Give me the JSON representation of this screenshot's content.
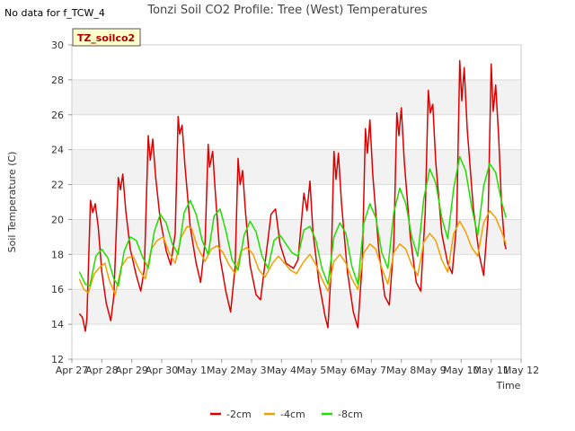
{
  "corner_note": "No data for f_TCW_4",
  "chart_data": {
    "type": "line",
    "title": "Tonzi Soil CO2 Profile: Tree (West) Temperatures",
    "xlabel": "Time",
    "ylabel": "Soil Temperature (C)",
    "box_label": "TZ_soilco2",
    "xlim": [
      0,
      15
    ],
    "ylim": [
      12,
      30
    ],
    "yticks": [
      12,
      14,
      16,
      18,
      20,
      22,
      24,
      26,
      28,
      30
    ],
    "xtick_labels": [
      "Apr 27",
      "Apr 28",
      "Apr 29",
      "Apr 30",
      "May 1",
      "May 2",
      "May 3",
      "May 4",
      "May 5",
      "May 6",
      "May 7",
      "May 8",
      "May 9",
      "May 10",
      "May 11",
      "May 12"
    ],
    "grid_bands": true,
    "legend_position": "bottom-center",
    "series": [
      {
        "name": "-2cm",
        "color": "#dd0000",
        "points": [
          [
            0.25,
            14.6
          ],
          [
            0.35,
            14.4
          ],
          [
            0.45,
            13.6
          ],
          [
            0.5,
            14.3
          ],
          [
            0.62,
            21.1
          ],
          [
            0.7,
            20.4
          ],
          [
            0.78,
            20.9
          ],
          [
            0.88,
            19.6
          ],
          [
            1.0,
            17.0
          ],
          [
            1.15,
            15.2
          ],
          [
            1.3,
            14.2
          ],
          [
            1.4,
            15.6
          ],
          [
            1.55,
            22.4
          ],
          [
            1.62,
            21.7
          ],
          [
            1.7,
            22.6
          ],
          [
            1.8,
            20.5
          ],
          [
            1.95,
            18.3
          ],
          [
            2.15,
            16.8
          ],
          [
            2.3,
            15.9
          ],
          [
            2.42,
            17.2
          ],
          [
            2.55,
            24.8
          ],
          [
            2.62,
            23.4
          ],
          [
            2.7,
            24.6
          ],
          [
            2.8,
            22.4
          ],
          [
            2.95,
            20.0
          ],
          [
            3.15,
            18.2
          ],
          [
            3.3,
            17.4
          ],
          [
            3.45,
            19.2
          ],
          [
            3.55,
            25.9
          ],
          [
            3.6,
            24.9
          ],
          [
            3.68,
            25.4
          ],
          [
            3.78,
            23.0
          ],
          [
            3.95,
            19.6
          ],
          [
            4.15,
            17.5
          ],
          [
            4.3,
            16.4
          ],
          [
            4.45,
            18.7
          ],
          [
            4.55,
            24.3
          ],
          [
            4.6,
            23.0
          ],
          [
            4.7,
            23.9
          ],
          [
            4.8,
            21.3
          ],
          [
            4.95,
            17.8
          ],
          [
            5.15,
            15.8
          ],
          [
            5.3,
            14.7
          ],
          [
            5.45,
            17.3
          ],
          [
            5.55,
            23.5
          ],
          [
            5.62,
            22.0
          ],
          [
            5.7,
            22.8
          ],
          [
            5.8,
            20.4
          ],
          [
            5.95,
            17.4
          ],
          [
            6.15,
            15.7
          ],
          [
            6.3,
            15.4
          ],
          [
            6.5,
            18.2
          ],
          [
            6.65,
            20.3
          ],
          [
            6.8,
            20.6
          ],
          [
            6.95,
            18.6
          ],
          [
            7.15,
            17.5
          ],
          [
            7.4,
            17.2
          ],
          [
            7.55,
            17.7
          ],
          [
            7.75,
            21.5
          ],
          [
            7.85,
            20.5
          ],
          [
            7.95,
            22.2
          ],
          [
            8.05,
            19.3
          ],
          [
            8.25,
            16.4
          ],
          [
            8.45,
            14.5
          ],
          [
            8.55,
            13.8
          ],
          [
            8.65,
            16.8
          ],
          [
            8.75,
            23.9
          ],
          [
            8.82,
            22.3
          ],
          [
            8.9,
            23.8
          ],
          [
            9.0,
            21.0
          ],
          [
            9.2,
            17.0
          ],
          [
            9.4,
            14.7
          ],
          [
            9.55,
            13.8
          ],
          [
            9.7,
            17.6
          ],
          [
            9.8,
            25.2
          ],
          [
            9.87,
            23.8
          ],
          [
            9.95,
            25.7
          ],
          [
            10.05,
            22.5
          ],
          [
            10.25,
            18.2
          ],
          [
            10.45,
            15.6
          ],
          [
            10.6,
            15.1
          ],
          [
            10.75,
            18.6
          ],
          [
            10.85,
            26.1
          ],
          [
            10.92,
            24.8
          ],
          [
            11.0,
            26.4
          ],
          [
            11.1,
            23.3
          ],
          [
            11.3,
            19.0
          ],
          [
            11.5,
            16.4
          ],
          [
            11.65,
            15.9
          ],
          [
            11.8,
            20.4
          ],
          [
            11.9,
            27.4
          ],
          [
            11.97,
            26.1
          ],
          [
            12.05,
            26.6
          ],
          [
            12.15,
            23.3
          ],
          [
            12.35,
            19.2
          ],
          [
            12.55,
            17.5
          ],
          [
            12.7,
            16.9
          ],
          [
            12.85,
            19.8
          ],
          [
            12.95,
            29.1
          ],
          [
            13.02,
            26.8
          ],
          [
            13.1,
            28.7
          ],
          [
            13.2,
            25.2
          ],
          [
            13.4,
            20.7
          ],
          [
            13.6,
            18.0
          ],
          [
            13.75,
            16.8
          ],
          [
            13.9,
            20.2
          ],
          [
            14.0,
            28.9
          ],
          [
            14.07,
            26.2
          ],
          [
            14.15,
            27.7
          ],
          [
            14.25,
            24.8
          ],
          [
            14.35,
            20.8
          ],
          [
            14.45,
            18.6
          ],
          [
            14.5,
            18.3
          ]
        ]
      },
      {
        "name": "-4cm",
        "color": "#f0a000",
        "points": [
          [
            0.25,
            16.6
          ],
          [
            0.4,
            16.0
          ],
          [
            0.55,
            15.8
          ],
          [
            0.75,
            16.9
          ],
          [
            0.95,
            17.3
          ],
          [
            1.1,
            17.5
          ],
          [
            1.25,
            16.5
          ],
          [
            1.45,
            15.7
          ],
          [
            1.65,
            17.3
          ],
          [
            1.85,
            17.8
          ],
          [
            2.05,
            17.9
          ],
          [
            2.25,
            17.1
          ],
          [
            2.45,
            16.6
          ],
          [
            2.65,
            18.3
          ],
          [
            2.85,
            18.8
          ],
          [
            3.05,
            19.0
          ],
          [
            3.25,
            18.1
          ],
          [
            3.45,
            17.5
          ],
          [
            3.65,
            19.0
          ],
          [
            3.85,
            19.6
          ],
          [
            4.0,
            19.5
          ],
          [
            4.2,
            18.4
          ],
          [
            4.45,
            17.6
          ],
          [
            4.65,
            18.3
          ],
          [
            4.85,
            18.5
          ],
          [
            5.05,
            18.1
          ],
          [
            5.25,
            17.4
          ],
          [
            5.45,
            16.9
          ],
          [
            5.65,
            18.2
          ],
          [
            5.85,
            18.4
          ],
          [
            6.05,
            18.0
          ],
          [
            6.25,
            17.1
          ],
          [
            6.45,
            16.7
          ],
          [
            6.7,
            17.5
          ],
          [
            6.9,
            17.9
          ],
          [
            7.1,
            17.5
          ],
          [
            7.3,
            17.1
          ],
          [
            7.5,
            16.9
          ],
          [
            7.75,
            17.6
          ],
          [
            7.95,
            18.0
          ],
          [
            8.15,
            17.4
          ],
          [
            8.35,
            16.6
          ],
          [
            8.55,
            15.9
          ],
          [
            8.75,
            17.6
          ],
          [
            8.95,
            18.0
          ],
          [
            9.15,
            17.5
          ],
          [
            9.35,
            16.6
          ],
          [
            9.55,
            16.0
          ],
          [
            9.75,
            18.1
          ],
          [
            9.95,
            18.6
          ],
          [
            10.15,
            18.3
          ],
          [
            10.35,
            17.2
          ],
          [
            10.55,
            16.3
          ],
          [
            10.75,
            18.1
          ],
          [
            10.95,
            18.6
          ],
          [
            11.15,
            18.3
          ],
          [
            11.35,
            17.4
          ],
          [
            11.55,
            16.8
          ],
          [
            11.75,
            18.7
          ],
          [
            11.95,
            19.2
          ],
          [
            12.15,
            18.8
          ],
          [
            12.35,
            17.7
          ],
          [
            12.55,
            17.0
          ],
          [
            12.75,
            19.2
          ],
          [
            12.95,
            19.9
          ],
          [
            13.15,
            19.3
          ],
          [
            13.35,
            18.4
          ],
          [
            13.55,
            17.9
          ],
          [
            13.75,
            19.8
          ],
          [
            13.95,
            20.5
          ],
          [
            14.15,
            20.1
          ],
          [
            14.35,
            19.3
          ],
          [
            14.5,
            18.6
          ]
        ]
      },
      {
        "name": "-8cm",
        "color": "#22dd00",
        "points": [
          [
            0.25,
            17.0
          ],
          [
            0.45,
            16.3
          ],
          [
            0.6,
            16.2
          ],
          [
            0.8,
            17.9
          ],
          [
            1.0,
            18.3
          ],
          [
            1.2,
            17.8
          ],
          [
            1.4,
            16.6
          ],
          [
            1.55,
            16.2
          ],
          [
            1.75,
            18.2
          ],
          [
            1.95,
            19.0
          ],
          [
            2.15,
            18.8
          ],
          [
            2.35,
            17.9
          ],
          [
            2.55,
            17.2
          ],
          [
            2.75,
            19.3
          ],
          [
            2.95,
            20.3
          ],
          [
            3.15,
            19.8
          ],
          [
            3.35,
            18.6
          ],
          [
            3.55,
            18.0
          ],
          [
            3.75,
            20.4
          ],
          [
            3.95,
            21.1
          ],
          [
            4.15,
            20.3
          ],
          [
            4.35,
            18.8
          ],
          [
            4.55,
            18.0
          ],
          [
            4.75,
            20.2
          ],
          [
            4.95,
            20.6
          ],
          [
            5.15,
            19.3
          ],
          [
            5.35,
            17.7
          ],
          [
            5.55,
            17.1
          ],
          [
            5.75,
            19.1
          ],
          [
            5.95,
            19.9
          ],
          [
            6.15,
            19.3
          ],
          [
            6.35,
            17.9
          ],
          [
            6.55,
            17.2
          ],
          [
            6.75,
            18.8
          ],
          [
            6.95,
            19.1
          ],
          [
            7.15,
            18.6
          ],
          [
            7.35,
            18.1
          ],
          [
            7.55,
            17.9
          ],
          [
            7.75,
            19.4
          ],
          [
            7.95,
            19.6
          ],
          [
            8.15,
            18.8
          ],
          [
            8.35,
            17.2
          ],
          [
            8.55,
            16.3
          ],
          [
            8.75,
            19.0
          ],
          [
            8.95,
            19.8
          ],
          [
            9.15,
            19.2
          ],
          [
            9.35,
            17.3
          ],
          [
            9.55,
            16.3
          ],
          [
            9.75,
            19.8
          ],
          [
            9.95,
            20.9
          ],
          [
            10.15,
            20.1
          ],
          [
            10.35,
            18.1
          ],
          [
            10.55,
            17.2
          ],
          [
            10.75,
            20.4
          ],
          [
            10.95,
            21.8
          ],
          [
            11.15,
            20.9
          ],
          [
            11.35,
            19.0
          ],
          [
            11.55,
            17.9
          ],
          [
            11.75,
            21.2
          ],
          [
            11.95,
            22.9
          ],
          [
            12.15,
            22.1
          ],
          [
            12.35,
            20.1
          ],
          [
            12.55,
            18.9
          ],
          [
            12.75,
            21.8
          ],
          [
            12.95,
            23.6
          ],
          [
            13.15,
            22.8
          ],
          [
            13.35,
            20.7
          ],
          [
            13.55,
            19.1
          ],
          [
            13.75,
            21.9
          ],
          [
            13.95,
            23.2
          ],
          [
            14.15,
            22.7
          ],
          [
            14.35,
            21.0
          ],
          [
            14.5,
            20.1
          ]
        ]
      }
    ]
  }
}
